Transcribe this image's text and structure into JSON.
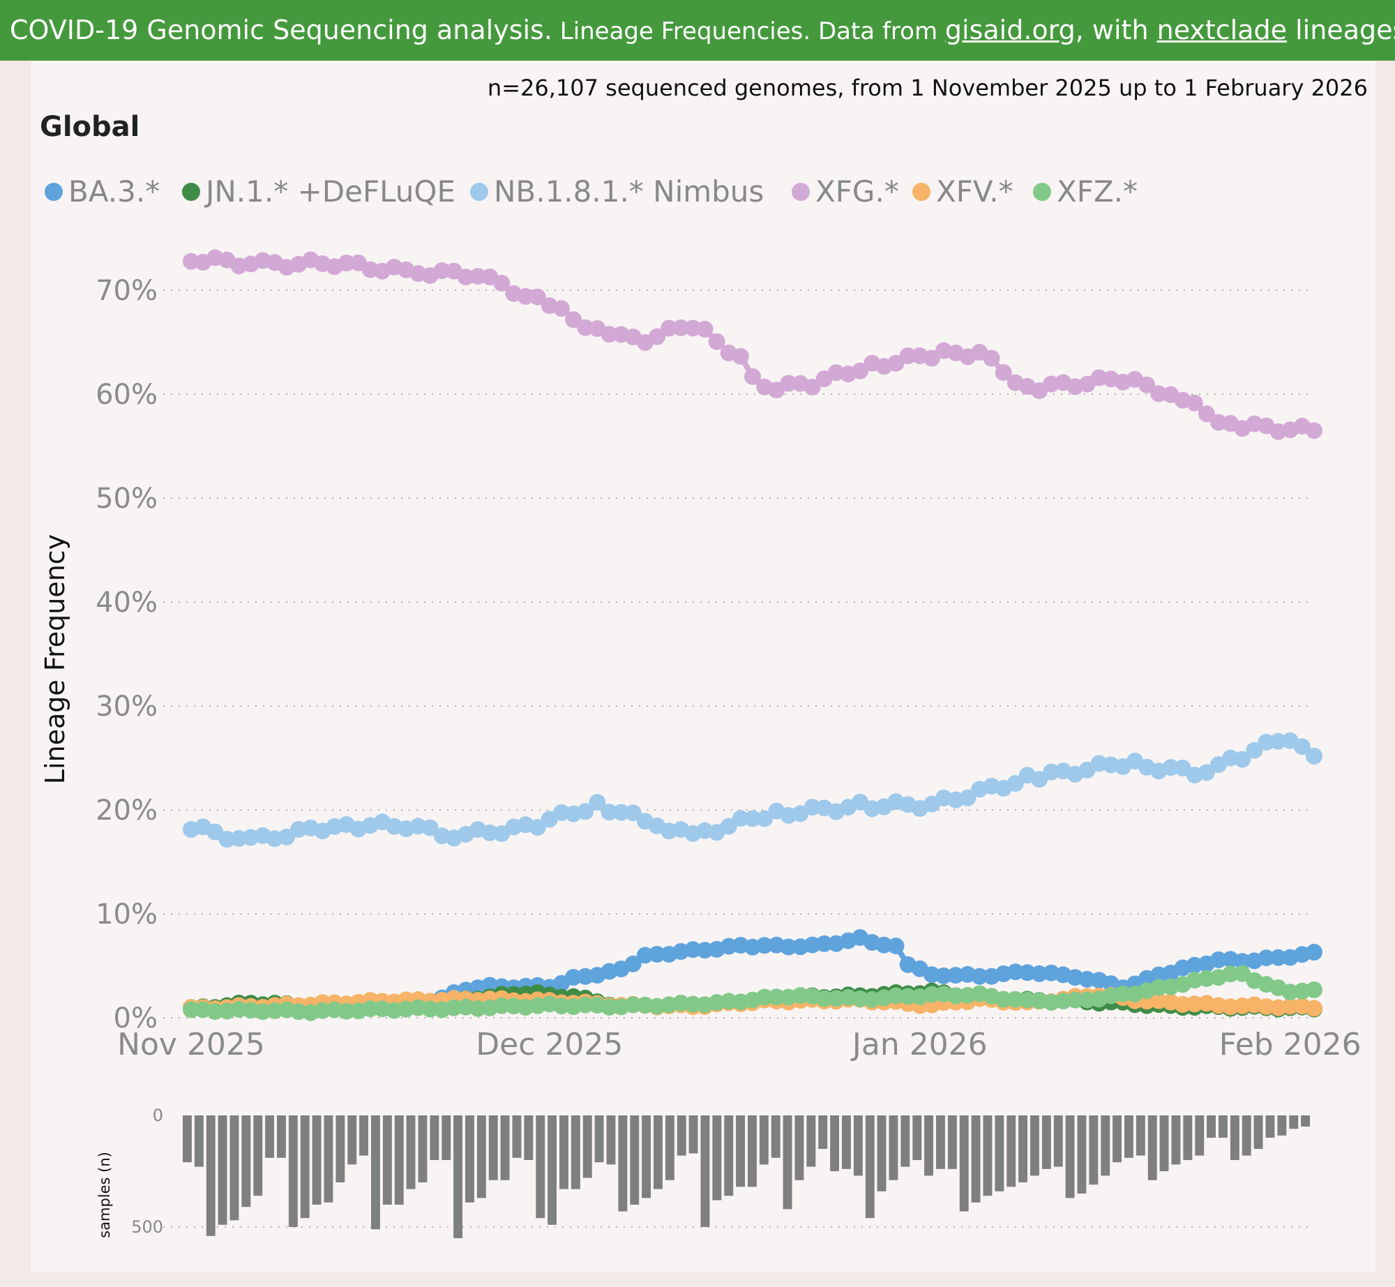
{
  "banner": {
    "part1": "COVID-19 Genomic Sequencing analysis.",
    "part2": " Lineage Frequencies. Data from ",
    "link1": "gisaid.org",
    "part3": ", with ",
    "link2": "nextclade",
    "part4": " lineages. Source"
  },
  "subtitle": "n=26,107 sequenced genomes, from 1 November 2025 up to 1 February 2026",
  "region": "Global",
  "colors": {
    "banner": "#45993d",
    "BA.3.*": "#5fa3dd",
    "JN.1.* +DeFLuQE": "#3f8c47",
    "NB.1.8.1.* Nimbus": "#9ec9ea",
    "XFG.*": "#d2a9d4",
    "XFV.*": "#f7b367",
    "XFZ.*": "#82c989",
    "bars": "#7f7f7f"
  },
  "chart_data": {
    "type": "line",
    "title": "Global",
    "ylabel": "Lineage Frequency",
    "ylim": [
      0,
      75
    ],
    "yticks": [
      "0%",
      "10%",
      "20%",
      "30%",
      "40%",
      "50%",
      "60%",
      "70%"
    ],
    "xticks": [
      "Nov 2025",
      "Dec 2025",
      "Jan 2026",
      "Feb 2026"
    ],
    "legend_position": "top-left",
    "start_day": 0,
    "days": 94,
    "series": [
      {
        "name": "XFG.*",
        "knots": [
          [
            0,
            73
          ],
          [
            6,
            72.5
          ],
          [
            12,
            72.6
          ],
          [
            18,
            71.8
          ],
          [
            24,
            71.5
          ],
          [
            30,
            68.5
          ],
          [
            35,
            65.5
          ],
          [
            38,
            65.3
          ],
          [
            42,
            66.7
          ],
          [
            46,
            63.5
          ],
          [
            48,
            60.5
          ],
          [
            52,
            61
          ],
          [
            56,
            62.5
          ],
          [
            62,
            63.8
          ],
          [
            66,
            64
          ],
          [
            70,
            60.5
          ],
          [
            78,
            61.5
          ],
          [
            82,
            60
          ],
          [
            87,
            57
          ],
          [
            94,
            56.5
          ]
        ]
      },
      {
        "name": "NB.1.8.1.* Nimbus",
        "knots": [
          [
            0,
            18.3
          ],
          [
            5,
            17
          ],
          [
            12,
            18.5
          ],
          [
            18,
            18.5
          ],
          [
            22,
            17.5
          ],
          [
            28,
            18.3
          ],
          [
            34,
            20.5
          ],
          [
            38,
            19
          ],
          [
            42,
            17.5
          ],
          [
            48,
            19.5
          ],
          [
            56,
            20.4
          ],
          [
            62,
            20.5
          ],
          [
            70,
            23
          ],
          [
            78,
            24.5
          ],
          [
            84,
            23.6
          ],
          [
            88,
            25
          ],
          [
            91,
            26.8
          ],
          [
            94,
            25.5
          ]
        ]
      },
      {
        "name": "BA.3.*",
        "knots": [
          [
            20,
            1.6
          ],
          [
            24,
            3
          ],
          [
            30,
            3
          ],
          [
            32,
            3.8
          ],
          [
            36,
            4.6
          ],
          [
            38,
            6
          ],
          [
            46,
            6.9
          ],
          [
            52,
            6.9
          ],
          [
            56,
            7.6
          ],
          [
            59,
            6.8
          ],
          [
            60,
            5
          ],
          [
            62,
            4.2
          ],
          [
            66,
            4
          ],
          [
            70,
            4.4
          ],
          [
            74,
            4
          ],
          [
            78,
            3
          ],
          [
            82,
            4.4
          ],
          [
            86,
            5.6
          ],
          [
            89,
            5.5
          ],
          [
            94,
            6.2
          ]
        ]
      },
      {
        "name": "JN.1.* +DeFLuQE",
        "knots": [
          [
            0,
            0.9
          ],
          [
            5,
            1.4
          ],
          [
            10,
            1.2
          ],
          [
            20,
            1.4
          ],
          [
            28,
            2.4
          ],
          [
            32,
            2
          ],
          [
            36,
            1.1
          ],
          [
            44,
            1.4
          ],
          [
            50,
            2
          ],
          [
            56,
            2.1
          ],
          [
            62,
            2.5
          ],
          [
            68,
            1.7
          ],
          [
            74,
            1.6
          ],
          [
            78,
            1.4
          ],
          [
            82,
            1.1
          ],
          [
            88,
            1
          ],
          [
            94,
            0.9
          ]
        ]
      },
      {
        "name": "XFV.*",
        "knots": [
          [
            0,
            0.9
          ],
          [
            8,
            1.2
          ],
          [
            16,
            1.6
          ],
          [
            24,
            1.8
          ],
          [
            30,
            1.6
          ],
          [
            36,
            1.2
          ],
          [
            42,
            1.1
          ],
          [
            48,
            1.6
          ],
          [
            56,
            1.7
          ],
          [
            62,
            1.2
          ],
          [
            66,
            1.8
          ],
          [
            70,
            1.4
          ],
          [
            76,
            2.2
          ],
          [
            80,
            1.6
          ],
          [
            86,
            1.2
          ],
          [
            94,
            1
          ]
        ]
      },
      {
        "name": "XFZ.*",
        "knots": [
          [
            0,
            0.7
          ],
          [
            6,
            0.7
          ],
          [
            10,
            0.6
          ],
          [
            16,
            0.8
          ],
          [
            22,
            0.9
          ],
          [
            30,
            1.2
          ],
          [
            36,
            1.1
          ],
          [
            44,
            1.4
          ],
          [
            50,
            2.1
          ],
          [
            56,
            1.8
          ],
          [
            62,
            2.2
          ],
          [
            66,
            2.2
          ],
          [
            70,
            1.6
          ],
          [
            74,
            1.6
          ],
          [
            78,
            2.2
          ],
          [
            82,
            3
          ],
          [
            86,
            4
          ],
          [
            88,
            4.2
          ],
          [
            90,
            3.2
          ],
          [
            92,
            2.4
          ],
          [
            94,
            2.8
          ]
        ]
      }
    ],
    "samples": {
      "ylabel": "samples (n)",
      "yticks": [
        "0",
        "500"
      ],
      "ymax": 500,
      "values": [
        210,
        230,
        540,
        490,
        470,
        410,
        360,
        190,
        190,
        500,
        460,
        400,
        390,
        300,
        220,
        180,
        510,
        400,
        400,
        330,
        300,
        200,
        200,
        550,
        390,
        370,
        290,
        290,
        190,
        200,
        460,
        490,
        330,
        330,
        280,
        210,
        220,
        430,
        400,
        370,
        330,
        290,
        180,
        170,
        500,
        380,
        360,
        320,
        320,
        220,
        190,
        420,
        290,
        230,
        150,
        250,
        240,
        270,
        460,
        340,
        290,
        230,
        200,
        270,
        240,
        240,
        430,
        390,
        360,
        340,
        320,
        300,
        270,
        240,
        230,
        370,
        350,
        310,
        270,
        210,
        190,
        180,
        290,
        250,
        220,
        200,
        180,
        100,
        100,
        200,
        180,
        150,
        100,
        90,
        60,
        50
      ]
    }
  }
}
